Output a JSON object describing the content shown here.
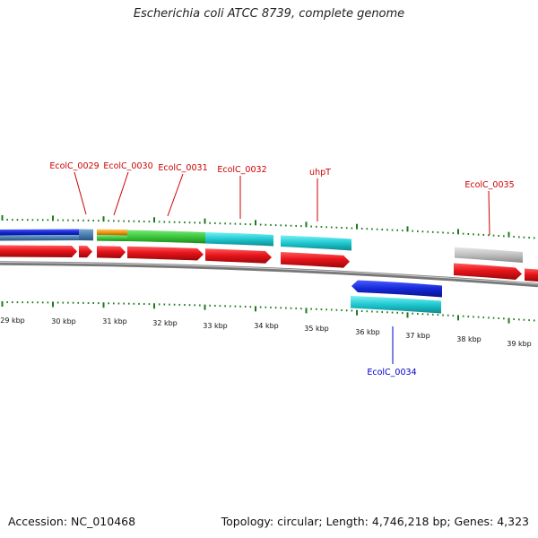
{
  "title": "Escherichia coli ATCC 8739, complete genome",
  "footer": {
    "accession": "Accession: NC_010468",
    "summary": "Topology: circular; Length: 4,746,218 bp; Genes: 4,323"
  },
  "scale_labels": [
    "29 kbp",
    "30 kbp",
    "31 kbp",
    "32 kbp",
    "33 kbp",
    "34 kbp",
    "35 kbp",
    "36 kbp",
    "37 kbp",
    "38 kbp",
    "39 kbp"
  ],
  "gene_labels": [
    {
      "name": "EcolC_0029",
      "color": "#cc0000"
    },
    {
      "name": "EcolC_0030",
      "color": "#cc0000"
    },
    {
      "name": "EcolC_0031",
      "color": "#cc0000"
    },
    {
      "name": "EcolC_0032",
      "color": "#cc0000"
    },
    {
      "name": "uhpT",
      "color": "#cc0000"
    },
    {
      "name": "EcolC_0035",
      "color": "#cc0000"
    },
    {
      "name": "EcolC_0034",
      "color": "#0000cc"
    }
  ],
  "colors": {
    "cds": "#e8141c",
    "tick": "#1e7a1e",
    "backbone": "#777777",
    "blue": "#1428d8",
    "cyan": "#1ec8d0",
    "green": "#3cc83c",
    "orange": "#f09a14",
    "steel": "#4a7fb0",
    "grey": "#c0c0c0"
  }
}
